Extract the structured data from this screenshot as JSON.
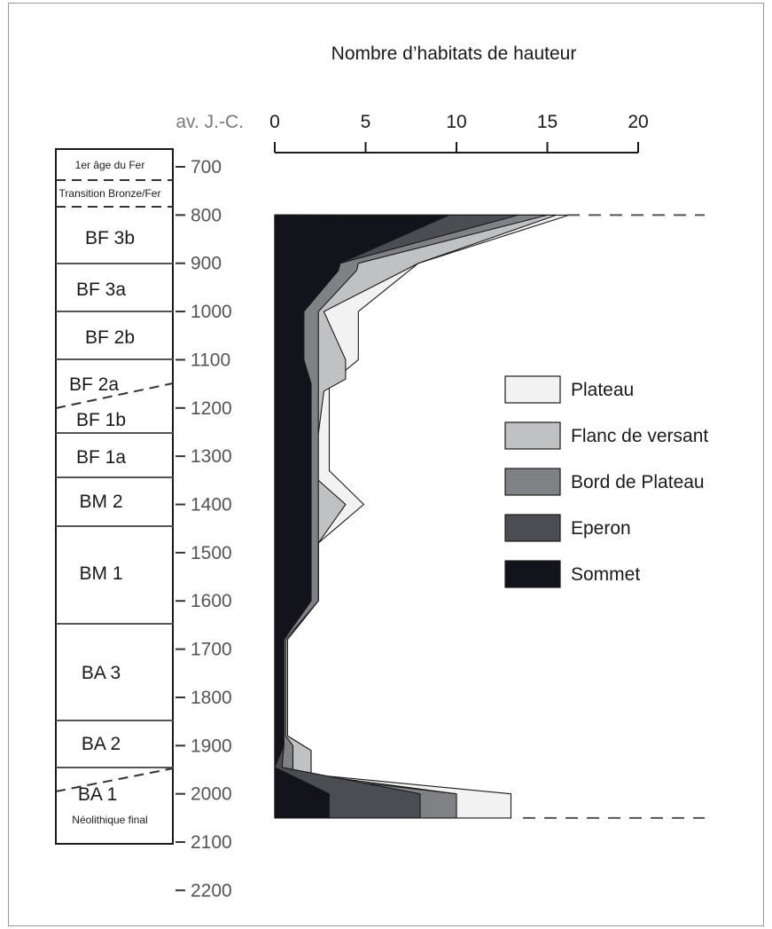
{
  "chart_data": {
    "type": "area",
    "orientation": "vertical-stacked",
    "title": "Nombre d’habitats de hauteur",
    "time_axis_label": "av. J.-C.",
    "time_ticks": [
      700,
      800,
      900,
      1000,
      1100,
      1200,
      1300,
      1400,
      1500,
      1600,
      1700,
      1800,
      1900,
      2000,
      2100,
      2200
    ],
    "count_ticks": [
      0,
      5,
      10,
      15,
      20
    ],
    "count_range": [
      0,
      20
    ],
    "time_range": [
      700,
      2200
    ],
    "legend_position": "right",
    "periods": [
      {
        "label": "1er âge du Fer",
        "small": true
      },
      {
        "label": "Transition Bronze/Fer",
        "small": true
      },
      {
        "label": "BF 3b"
      },
      {
        "label": "BF 3a"
      },
      {
        "label": "BF 2b"
      },
      {
        "label": "BF 2a"
      },
      {
        "label": "BF 1b"
      },
      {
        "label": "BF 1a"
      },
      {
        "label": "BM 2"
      },
      {
        "label": "BM 1"
      },
      {
        "label": "BA 3"
      },
      {
        "label": "BA 2"
      },
      {
        "label": "BA 1"
      },
      {
        "label": "Néolithique final",
        "small": true
      }
    ],
    "series": [
      {
        "name": "Sommet",
        "color": "#13131c",
        "cumulative": [
          [
            800,
            9.6
          ],
          [
            900,
            3.6
          ],
          [
            915,
            3.5
          ],
          [
            1000,
            1.6
          ],
          [
            1100,
            1.6
          ],
          [
            1150,
            2.0
          ],
          [
            1600,
            2.0
          ],
          [
            1680,
            0.5
          ],
          [
            1900,
            0.5
          ],
          [
            1945,
            0
          ],
          [
            2000,
            3.0
          ],
          [
            2050,
            3.0
          ]
        ]
      },
      {
        "name": "Eperon",
        "color": "#4a4d51",
        "cumulative": [
          [
            800,
            13.4
          ],
          [
            900,
            3.6
          ],
          [
            1000,
            1.6
          ],
          [
            1100,
            1.6
          ],
          [
            1150,
            2.0
          ],
          [
            1600,
            2.0
          ],
          [
            1680,
            0.5
          ],
          [
            1900,
            0.5
          ],
          [
            1945,
            0.4
          ],
          [
            2000,
            8.0
          ],
          [
            2050,
            8.0
          ]
        ]
      },
      {
        "name": "Bord de Plateau",
        "color": "#7f8185",
        "cumulative": [
          [
            800,
            15.0
          ],
          [
            900,
            4.6
          ],
          [
            915,
            4.5
          ],
          [
            1000,
            2.4
          ],
          [
            1100,
            2.4
          ],
          [
            1160,
            2.4
          ],
          [
            1350,
            2.4
          ],
          [
            1440,
            2.4
          ],
          [
            1600,
            2.4
          ],
          [
            1680,
            0.6
          ],
          [
            1880,
            0.6
          ],
          [
            1900,
            1.0
          ],
          [
            1960,
            1.0
          ],
          [
            2000,
            10.0
          ],
          [
            2050,
            10.0
          ]
        ]
      },
      {
        "name": "Flanc de versant",
        "color": "#bfc1c3",
        "cumulative": [
          [
            800,
            15.5
          ],
          [
            900,
            7.9
          ],
          [
            1000,
            2.7
          ],
          [
            1100,
            3.9
          ],
          [
            1140,
            3.9
          ],
          [
            1165,
            2.7
          ],
          [
            1340,
            2.1
          ],
          [
            1400,
            3.9
          ],
          [
            1480,
            2.4
          ],
          [
            1600,
            2.4
          ],
          [
            1680,
            0.7
          ],
          [
            1880,
            0.7
          ],
          [
            1910,
            2.0
          ],
          [
            1960,
            2.0
          ],
          [
            2000,
            10.0
          ],
          [
            2050,
            10.0
          ]
        ]
      },
      {
        "name": "Plateau",
        "color": "#f2f2f2",
        "cumulative": [
          [
            800,
            16.2
          ],
          [
            900,
            7.9
          ],
          [
            1000,
            4.6
          ],
          [
            1100,
            4.6
          ],
          [
            1150,
            3.0
          ],
          [
            1200,
            3.0
          ],
          [
            1330,
            3.0
          ],
          [
            1400,
            4.9
          ],
          [
            1480,
            2.4
          ],
          [
            1600,
            2.4
          ],
          [
            1680,
            0.7
          ],
          [
            1880,
            0.7
          ],
          [
            1910,
            2.0
          ],
          [
            1960,
            2.0
          ],
          [
            2000,
            13.0
          ],
          [
            2050,
            13.0
          ]
        ]
      }
    ]
  }
}
